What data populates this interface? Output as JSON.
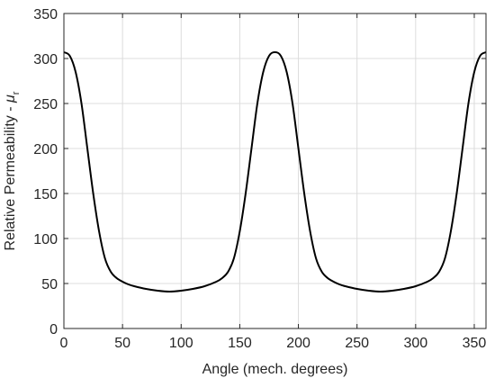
{
  "chart_data": {
    "type": "line",
    "title": "",
    "xlabel": "Angle (mech. degrees)",
    "ylabel": {
      "text": "Relative Permeability - ",
      "symbol": "μ",
      "subscript": "r"
    },
    "xlim": [
      0,
      360
    ],
    "ylim": [
      0,
      350
    ],
    "x_ticks": [
      0,
      50,
      100,
      150,
      200,
      250,
      300,
      350
    ],
    "y_ticks": [
      0,
      50,
      100,
      150,
      200,
      250,
      300,
      350
    ],
    "grid": true,
    "colors": {
      "line": "#000000",
      "grid": "#dcdcdc",
      "axis": "#262626"
    },
    "series": [
      {
        "name": "",
        "x": [
          0,
          5,
          10,
          15,
          20,
          25,
          30,
          35,
          40,
          45,
          50,
          55,
          60,
          70,
          80,
          90,
          100,
          110,
          120,
          130,
          135,
          140,
          145,
          150,
          155,
          160,
          165,
          170,
          175,
          180,
          185,
          190,
          195,
          200,
          205,
          210,
          215,
          220,
          225,
          230,
          235,
          240,
          250,
          260,
          270,
          280,
          290,
          300,
          310,
          315,
          320,
          325,
          330,
          335,
          340,
          345,
          350,
          355,
          360
        ],
        "y": [
          307,
          303,
          285,
          250,
          200,
          150,
          108,
          78,
          63,
          56,
          52,
          49,
          47,
          44,
          42,
          41,
          42,
          44,
          47,
          52,
          56,
          63,
          78,
          108,
          150,
          200,
          250,
          285,
          303,
          307,
          303,
          285,
          250,
          200,
          150,
          108,
          78,
          63,
          56,
          52,
          49,
          47,
          44,
          42,
          41,
          42,
          44,
          47,
          52,
          56,
          63,
          78,
          108,
          150,
          200,
          250,
          285,
          303,
          307
        ]
      }
    ]
  }
}
